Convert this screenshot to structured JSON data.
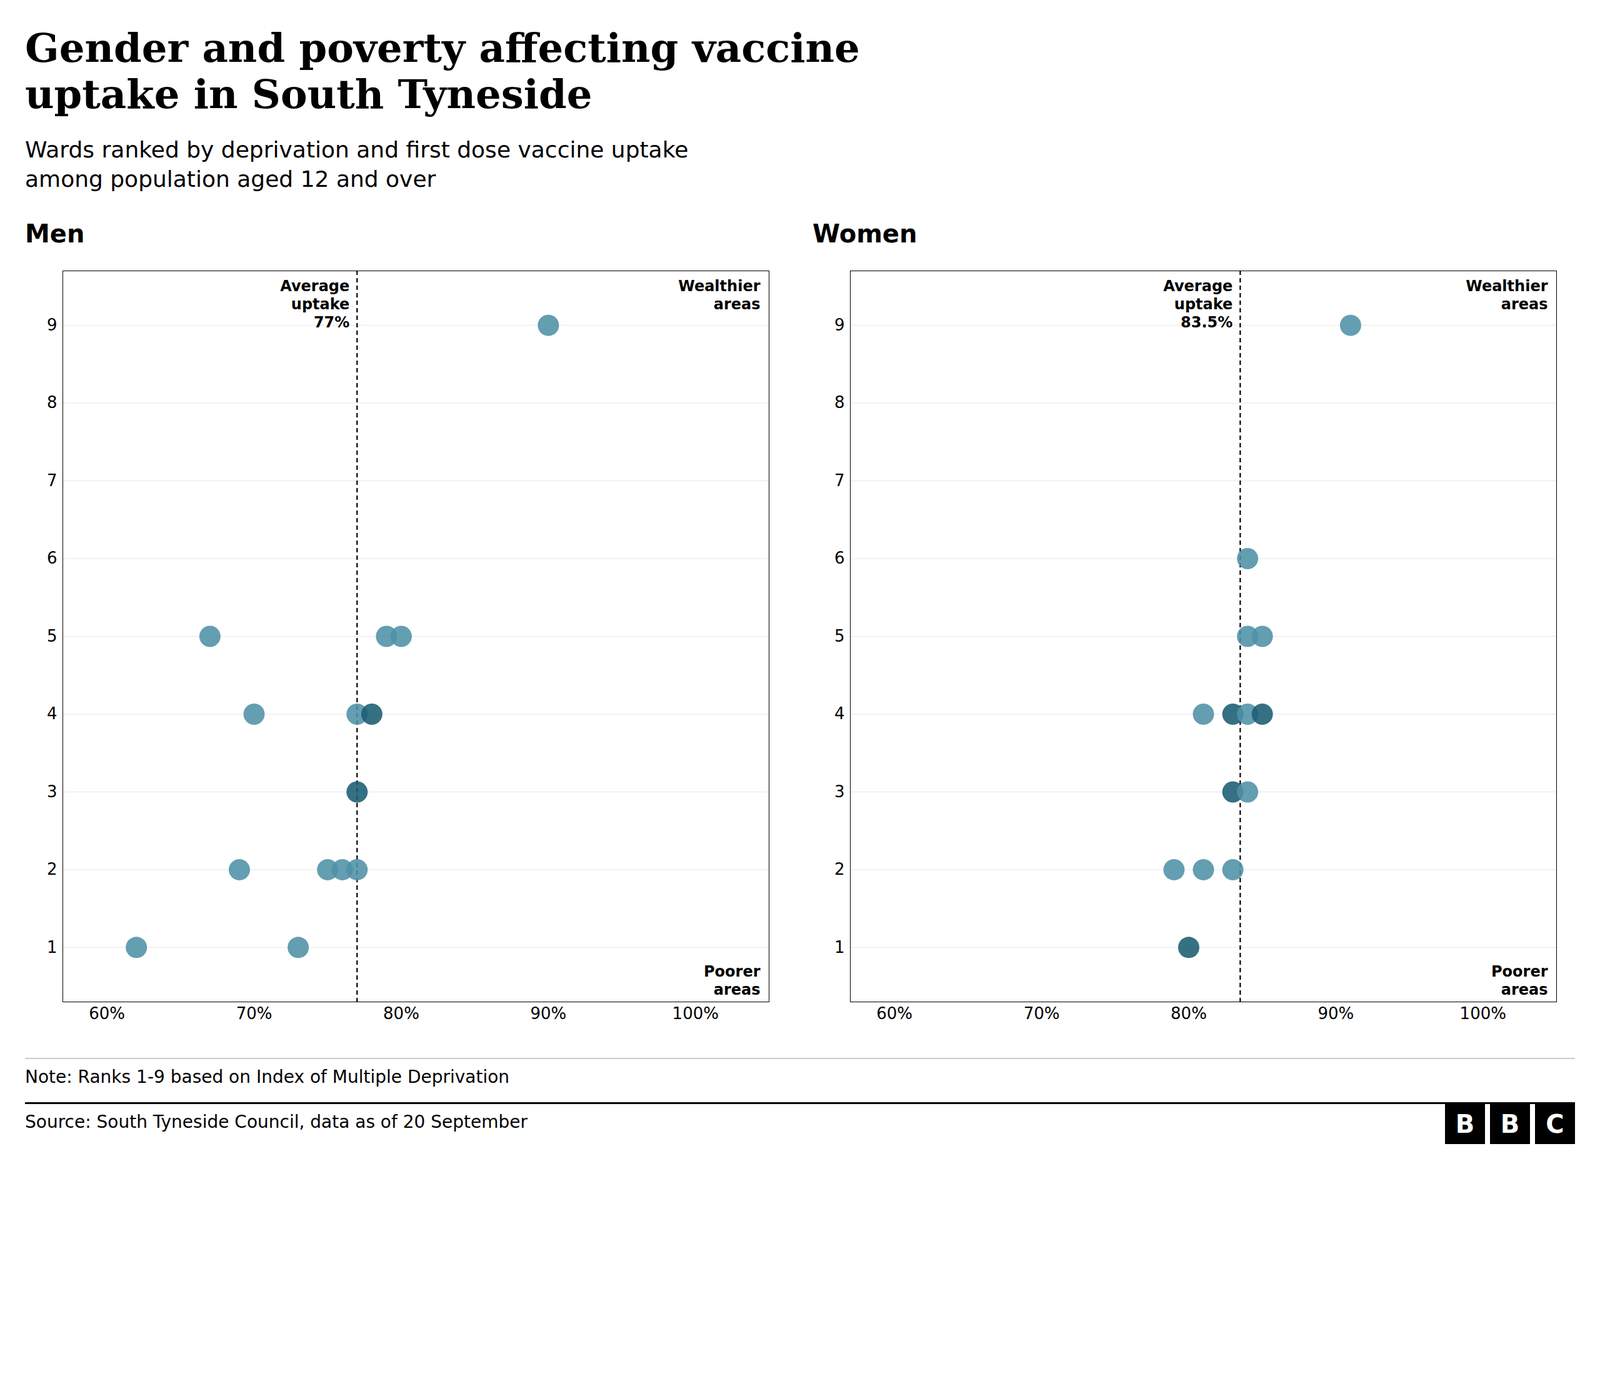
{
  "title": "Gender and poverty affecting vaccine\nuptake in South Tyneside",
  "subtitle": "Wards ranked by deprivation and first dose vaccine uptake\namong population aged 12 and over",
  "note": "Note: Ranks 1-9 based on Index of Multiple Deprivation",
  "source": "Source: South Tyneside Council, data as of 20 September",
  "logo": "BBC",
  "chart_data": [
    {
      "type": "scatter",
      "title": "Men",
      "x": [
        90,
        67,
        79,
        80,
        70,
        77,
        78,
        77,
        69,
        75,
        76,
        77,
        62,
        73
      ],
      "y": [
        9,
        5,
        5,
        5,
        4,
        4,
        4,
        3,
        2,
        2,
        2,
        2,
        1,
        1
      ],
      "colors": [
        "#4f91a6",
        "#4f91a6",
        "#4f91a6",
        "#4f91a6",
        "#4f91a6",
        "#4f91a6",
        "#1a5c72",
        "#1a5c72",
        "#4f91a6",
        "#4f91a6",
        "#4f91a6",
        "#4f91a6",
        "#4f91a6",
        "#4f91a6"
      ],
      "xlim": [
        57,
        105
      ],
      "xticks": [
        {
          "value": 60,
          "label": "60%"
        },
        {
          "value": 70,
          "label": "70%"
        },
        {
          "value": 80,
          "label": "80%"
        },
        {
          "value": 90,
          "label": "90%"
        },
        {
          "value": 100,
          "label": "100%"
        }
      ],
      "ylim": [
        0.3,
        9.7
      ],
      "yticks": [
        1,
        2,
        3,
        4,
        5,
        6,
        7,
        8,
        9
      ],
      "grid": true,
      "average": 77.0,
      "average_label": "Average\nuptake\n77%",
      "annotations": [
        "Wealthier\nareas",
        "Poorer\nareas"
      ]
    },
    {
      "type": "scatter",
      "title": "Women",
      "x": [
        91,
        84,
        84,
        85,
        81,
        83,
        84,
        85,
        83,
        84,
        79,
        81,
        83,
        80
      ],
      "y": [
        9,
        6,
        5,
        5,
        4,
        4,
        4,
        4,
        3,
        3,
        2,
        2,
        2,
        1
      ],
      "colors": [
        "#4f91a6",
        "#4f91a6",
        "#4f91a6",
        "#4f91a6",
        "#4f91a6",
        "#1a5c72",
        "#4f91a6",
        "#1a5c72",
        "#1a5c72",
        "#4f91a6",
        "#4f91a6",
        "#4f91a6",
        "#4f91a6",
        "#1a5c72"
      ],
      "xlim": [
        57,
        105
      ],
      "xticks": [
        {
          "value": 60,
          "label": "60%"
        },
        {
          "value": 70,
          "label": "70%"
        },
        {
          "value": 80,
          "label": "80%"
        },
        {
          "value": 90,
          "label": "90%"
        },
        {
          "value": 100,
          "label": "100%"
        }
      ],
      "ylim": [
        0.3,
        9.7
      ],
      "yticks": [
        1,
        2,
        3,
        4,
        5,
        6,
        7,
        8,
        9
      ],
      "grid": true,
      "average": 83.5,
      "average_label": "Average\nuptake\n83.5%",
      "annotations": [
        "Wealthier\nareas",
        "Poorer\nareas"
      ]
    }
  ]
}
